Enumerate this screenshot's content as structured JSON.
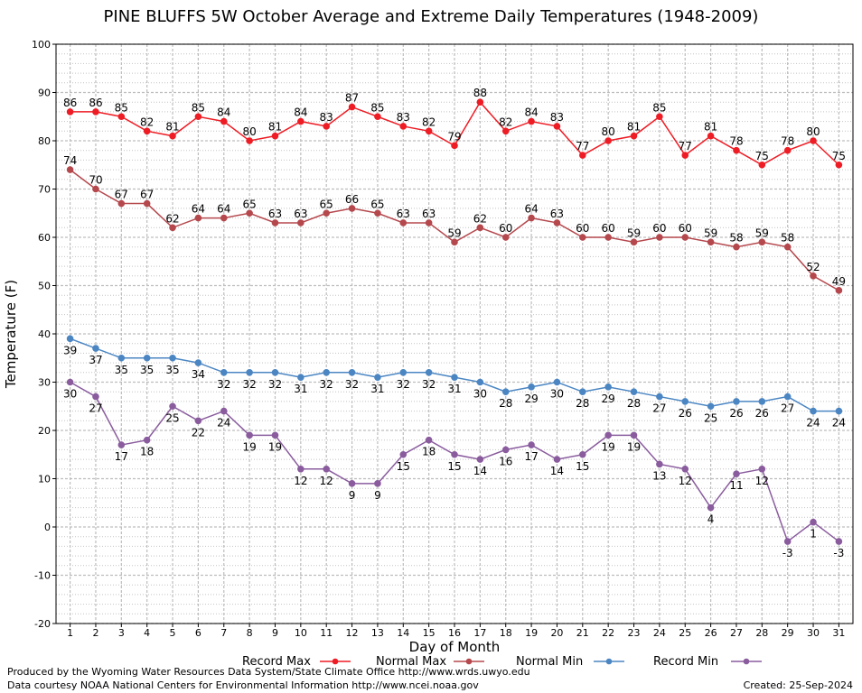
{
  "chart_data": {
    "type": "line",
    "title": "PINE BLUFFS 5W October Average and Extreme Daily Temperatures (1948-2009)",
    "xlabel": "Day of Month",
    "ylabel": "Temperature (F)",
    "ylim": [
      -20,
      100
    ],
    "yticks": [
      -20,
      -10,
      0,
      10,
      20,
      30,
      40,
      50,
      60,
      70,
      80,
      90,
      100
    ],
    "x": [
      1,
      2,
      3,
      4,
      5,
      6,
      7,
      8,
      9,
      10,
      11,
      12,
      13,
      14,
      15,
      16,
      17,
      18,
      19,
      20,
      21,
      22,
      23,
      24,
      25,
      26,
      27,
      28,
      29,
      30,
      31
    ],
    "grid": true,
    "legend_position": "bottom",
    "series": [
      {
        "name": "Record Max",
        "color": "#ee1c24",
        "values": [
          86,
          86,
          85,
          82,
          81,
          85,
          84,
          80,
          81,
          84,
          83,
          87,
          85,
          83,
          82,
          79,
          88,
          82,
          84,
          83,
          77,
          80,
          81,
          85,
          77,
          81,
          78,
          75,
          78,
          80,
          75
        ],
        "label_position": "above"
      },
      {
        "name": "Normal Max",
        "color": "#b5484d",
        "values": [
          74,
          70,
          67,
          67,
          62,
          64,
          64,
          65,
          63,
          63,
          65,
          66,
          65,
          63,
          63,
          59,
          62,
          60,
          64,
          63,
          60,
          60,
          59,
          60,
          60,
          59,
          58,
          59,
          58,
          52,
          49
        ],
        "label_position": "above"
      },
      {
        "name": "Normal Min",
        "color": "#4b86c3",
        "values": [
          39,
          37,
          35,
          35,
          35,
          34,
          32,
          32,
          32,
          31,
          32,
          32,
          31,
          32,
          32,
          31,
          30,
          28,
          29,
          30,
          28,
          29,
          28,
          27,
          26,
          25,
          26,
          26,
          27,
          24,
          24
        ],
        "label_position": "below"
      },
      {
        "name": "Record Min",
        "color": "#8a5c9e",
        "values": [
          30,
          27,
          17,
          18,
          25,
          22,
          24,
          19,
          19,
          12,
          12,
          9,
          9,
          15,
          18,
          15,
          14,
          16,
          17,
          14,
          15,
          19,
          19,
          13,
          12,
          4,
          11,
          12,
          -3,
          1,
          -3
        ],
        "label_position": "below"
      }
    ]
  },
  "footer": {
    "produced_by": "Produced by the Wyoming Water Resources Data System/State Climate Office http://www.wrds.uwyo.edu",
    "data_courtesy": "Data courtesy NOAA National Centers for Environmental Information http://www.ncei.noaa.gov",
    "created": "Created:  25-Sep-2024"
  }
}
